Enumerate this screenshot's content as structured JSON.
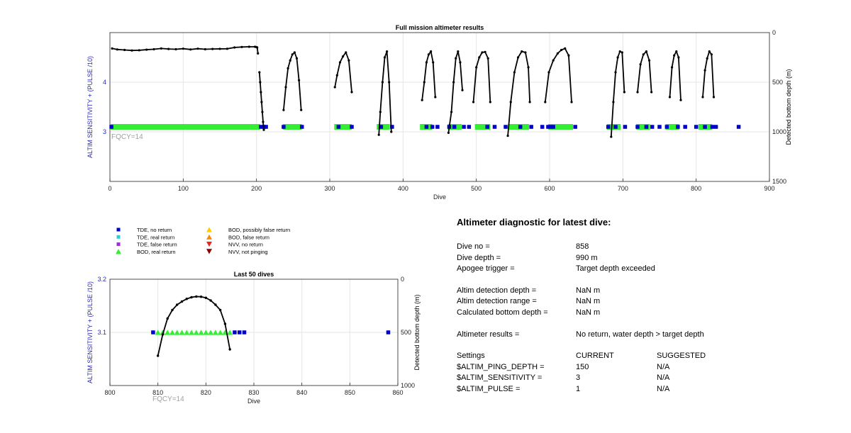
{
  "chart_data": [
    {
      "type": "scatter",
      "title": "Full mission altimeter results",
      "xlabel": "Dive",
      "ylabel_left": "ALTIM SENSITIVITY + (PULSE /10)",
      "ylabel_right": "Detected bottom depth (m)",
      "xlim": [
        0,
        900
      ],
      "ylim_left": [
        2,
        5
      ],
      "ylim_right": [
        1500,
        0
      ],
      "x_ticks": [
        "0",
        "100",
        "200",
        "300",
        "400",
        "500",
        "600",
        "700",
        "800",
        "900"
      ],
      "y_ticks_left": [
        "3",
        "4"
      ],
      "y_ticks_right": [
        "0",
        "500",
        "1000",
        "1500"
      ],
      "annotation": "FQCY=14",
      "grid": true,
      "tde_no_return_dives": [
        2,
        206,
        210,
        213,
        237,
        262,
        312,
        330,
        370,
        385,
        432,
        440,
        447,
        463,
        470,
        483,
        490,
        515,
        525,
        540,
        560,
        575,
        590,
        598,
        602,
        605,
        635,
        680,
        690,
        703,
        720,
        732,
        740,
        750,
        760,
        775,
        785,
        800,
        812,
        822,
        827,
        858
      ],
      "bod_real_return_ranges": [
        [
          3,
          203
        ],
        [
          238,
          260
        ],
        [
          308,
          328
        ],
        [
          366,
          380
        ],
        [
          425,
          438
        ],
        [
          463,
          478
        ],
        [
          500,
          517
        ],
        [
          545,
          570
        ],
        [
          600,
          630
        ],
        [
          680,
          695
        ],
        [
          720,
          735
        ],
        [
          760,
          775
        ],
        [
          805,
          820
        ]
      ],
      "bod_level": 3.1,
      "depth_series": [
        {
          "x": [
            3,
            10,
            20,
            30,
            40,
            50,
            60,
            70,
            80,
            90,
            100,
            110,
            120,
            130,
            140,
            150,
            160,
            170,
            180,
            190,
            198,
            200,
            201,
            202
          ],
          "y": [
            160,
            170,
            175,
            180,
            178,
            172,
            168,
            160,
            165,
            168,
            162,
            170,
            162,
            168,
            165,
            164,
            163,
            150,
            145,
            143,
            143,
            146,
            150,
            210
          ]
        },
        {
          "x": [
            204,
            205,
            206,
            207,
            208,
            209,
            210
          ],
          "y": [
            400,
            500,
            600,
            700,
            800,
            900,
            980
          ]
        },
        {
          "x": [
            237,
            240,
            243,
            246,
            249,
            252,
            255,
            258,
            261
          ],
          "y": [
            780,
            550,
            360,
            280,
            220,
            200,
            260,
            480,
            780
          ]
        },
        {
          "x": [
            307,
            310,
            314,
            318,
            322,
            326,
            330
          ],
          "y": [
            550,
            430,
            300,
            240,
            200,
            280,
            600
          ]
        },
        {
          "x": [
            367,
            369,
            372,
            375,
            378,
            381,
            384
          ],
          "y": [
            1030,
            800,
            500,
            250,
            190,
            500,
            1000
          ]
        },
        {
          "x": [
            426,
            429,
            432,
            435,
            438,
            441,
            444
          ],
          "y": [
            680,
            500,
            300,
            220,
            190,
            300,
            650
          ]
        },
        {
          "x": [
            462,
            466,
            469,
            472,
            475,
            478,
            481
          ],
          "y": [
            1010,
            800,
            500,
            260,
            190,
            300,
            580
          ]
        },
        {
          "x": [
            496,
            500,
            504,
            508,
            512,
            516,
            519
          ],
          "y": [
            700,
            350,
            250,
            200,
            195,
            260,
            700
          ]
        },
        {
          "x": [
            543,
            547,
            552,
            557,
            562,
            567,
            571,
            573
          ],
          "y": [
            1040,
            700,
            400,
            250,
            190,
            200,
            350,
            700
          ]
        },
        {
          "x": [
            594,
            599,
            605,
            611,
            616,
            621,
            626,
            630
          ],
          "y": [
            700,
            400,
            280,
            210,
            175,
            160,
            230,
            700
          ]
        },
        {
          "x": [
            684,
            687,
            690,
            693,
            696,
            699,
            702
          ],
          "y": [
            1050,
            700,
            400,
            250,
            190,
            200,
            600
          ]
        },
        {
          "x": [
            720,
            724,
            728,
            732,
            736,
            739
          ],
          "y": [
            600,
            320,
            220,
            190,
            280,
            600
          ]
        },
        {
          "x": [
            764,
            767,
            770,
            773,
            776,
            779
          ],
          "y": [
            650,
            350,
            230,
            190,
            250,
            680
          ]
        },
        {
          "x": [
            809,
            812,
            815,
            818,
            821,
            824
          ],
          "y": [
            650,
            380,
            260,
            190,
            220,
            650
          ]
        }
      ]
    },
    {
      "type": "scatter",
      "title": "Last 50 dives",
      "xlabel": "Dive",
      "ylabel_left": "ALTIM SENSITIVITY + (PULSE /10)",
      "ylabel_right": "Detected bottom depth (m)",
      "xlim": [
        800,
        860
      ],
      "ylim_left": [
        3,
        3.2
      ],
      "ylim_right": [
        1000,
        0
      ],
      "x_ticks": [
        "800",
        "810",
        "820",
        "830",
        "840",
        "850",
        "860"
      ],
      "y_ticks_left": [
        "3.1",
        "3.2"
      ],
      "y_ticks_right": [
        "0",
        "500",
        "1000"
      ],
      "annotation": "FQCY=14",
      "grid": true,
      "tde_no_return": [
        [
          809,
          3.1
        ],
        [
          826,
          3.1
        ],
        [
          827,
          3.1
        ],
        [
          828,
          3.1
        ],
        [
          858,
          3.1
        ]
      ],
      "bod_real_return": [
        [
          810,
          3.1
        ],
        [
          811,
          3.1
        ],
        [
          812,
          3.1
        ],
        [
          813,
          3.1
        ],
        [
          814,
          3.1
        ],
        [
          815,
          3.1
        ],
        [
          816,
          3.1
        ],
        [
          817,
          3.1
        ],
        [
          818,
          3.1
        ],
        [
          819,
          3.1
        ],
        [
          820,
          3.1
        ],
        [
          821,
          3.1
        ],
        [
          822,
          3.1
        ],
        [
          823,
          3.1
        ],
        [
          824,
          3.1
        ],
        [
          825,
          3.1
        ]
      ],
      "depth": {
        "x": [
          810,
          811,
          812,
          813,
          814,
          815,
          816,
          817,
          818,
          819,
          820,
          821,
          822,
          823,
          824,
          825
        ],
        "y": [
          720,
          520,
          370,
          290,
          240,
          210,
          185,
          170,
          163,
          165,
          175,
          200,
          240,
          290,
          420,
          660
        ]
      }
    }
  ],
  "legend": {
    "items": [
      {
        "label": "TDE, no return",
        "shape": "square",
        "color": "#0000cc"
      },
      {
        "label": "TDE, real return",
        "shape": "square",
        "color": "#33cccc"
      },
      {
        "label": "TDE, false return",
        "shape": "square",
        "color": "#9933cc"
      },
      {
        "label": "BOD, real return",
        "shape": "triangle-up",
        "color": "#33ee33"
      },
      {
        "label": "BOD, possibly false return",
        "shape": "triangle-up",
        "color": "#ffcc00"
      },
      {
        "label": "BOD, false return",
        "shape": "triangle-up",
        "color": "#ff8800"
      },
      {
        "label": "NVV, no return",
        "shape": "triangle-down",
        "color": "#ee2222"
      },
      {
        "label": "NVV, not pinging",
        "shape": "triangle-down",
        "color": "#880000"
      }
    ]
  },
  "colors": {
    "axis_label_blue": "#2a2ab8",
    "annotation_gray": "#a0a0a0",
    "grid": "#e6e6e6",
    "tde": "#0000cc",
    "bod": "#33ee33"
  },
  "diagnostic": {
    "title": "Altimeter diagnostic for latest dive:",
    "dive_no_label": "Dive no =",
    "dive_no_value": "858",
    "dive_depth_label": "Dive depth =",
    "dive_depth_value": "990 m",
    "apogee_label": "Apogee trigger =",
    "apogee_value": "Target depth exceeded",
    "detection_depth_label": "Altim detection depth =",
    "detection_depth_value": "NaN m",
    "detection_range_label": "Altim detection range =",
    "detection_range_value": "NaN m",
    "bottom_depth_label": "Calculated bottom depth =",
    "bottom_depth_value": "NaN m",
    "results_label": "Altimeter results =",
    "results_value": "No return, water depth > target depth",
    "settings_label": "Settings",
    "current_label": "CURRENT",
    "suggested_label": "SUGGESTED",
    "settings": [
      {
        "name": "$ALTIM_PING_DEPTH =",
        "current": "150",
        "suggested": "N/A"
      },
      {
        "name": "$ALTIM_SENSITIVITY =",
        "current": "3",
        "suggested": "N/A"
      },
      {
        "name": "$ALTIM_PULSE =",
        "current": "1",
        "suggested": "N/A"
      }
    ]
  }
}
